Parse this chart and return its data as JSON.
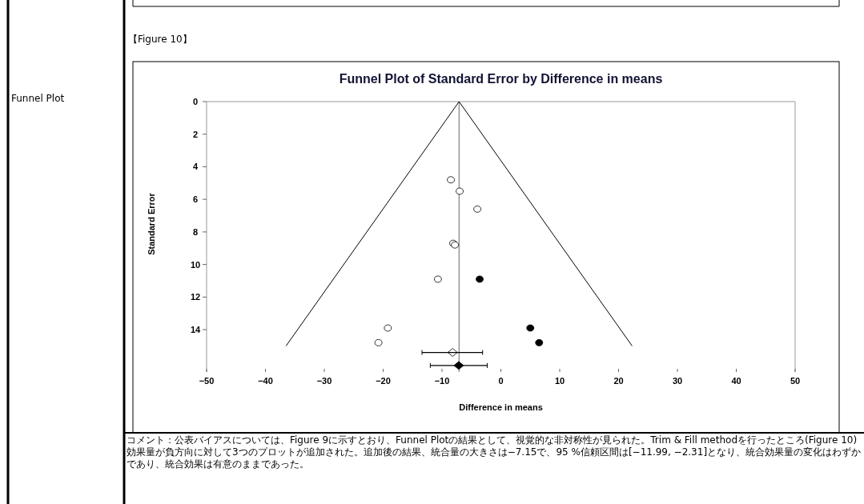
{
  "chart_data": {
    "type": "scatter",
    "title": "Funnel Plot of Standard Error by Difference in means",
    "xlabel": "Difference in means",
    "ylabel": "Standard Error",
    "xlim": [
      -50,
      50
    ],
    "ylim": [
      16.6,
      0
    ],
    "xticks": [
      -50,
      -40,
      -30,
      -20,
      -10,
      0,
      10,
      20,
      30,
      40,
      50
    ],
    "yticks": [
      0,
      2,
      4,
      6,
      8,
      10,
      12,
      14
    ],
    "series": [
      {
        "type": "line",
        "color": "#000000",
        "marker": "none",
        "x": [
          -36.5,
          -7.1,
          22.3
        ],
        "values": [
          15,
          0,
          15
        ]
      },
      {
        "color": "#ffffff",
        "marker": "circle",
        "x": [
          -8.5,
          -7.0,
          -4.0,
          -8.1,
          -7.8,
          -10.7,
          -19.2,
          -20.8
        ],
        "values": [
          4.8,
          5.5,
          6.6,
          8.7,
          8.8,
          10.9,
          13.9,
          14.8
        ]
      },
      {
        "color": "#000000",
        "marker": "circle",
        "x": [
          -3.6,
          5.0,
          6.5
        ],
        "values": [
          10.9,
          13.9,
          14.8
        ]
      },
      {
        "color": "#ffffff",
        "marker": "diamond",
        "x": [
          -8.2
        ],
        "values": [
          15.4
        ],
        "xerrors": [
          [
            -13.4,
            -3.1
          ]
        ]
      },
      {
        "color": "#000000",
        "marker": "diamond",
        "x": [
          -7.15
        ],
        "values": [
          16.2
        ],
        "xerrors": [
          [
            -11.99,
            -2.31
          ]
        ]
      }
    ],
    "ref_lines": [
      {
        "axis": "x",
        "value": -7.1,
        "color": "#808080"
      }
    ],
    "annotations": [
      "【Figure 10】",
      "Funnel Plot",
      "コメント：公表バイアスについては、Figure 9に示すとおり、Funnel Plotの結果として、視覚的な非対称性が見られた。Trim & Fill methodを行ったところ(Figure 10)効果量が負方向に対して3つのプロットが追加された。追加後の結果、統合量の大きさは−7.15で、95 %信頼区間は[−11.99, −2.31]となり、統合効果量の変化はわずかであり、統合効果は有意のままであった。"
    ]
  }
}
